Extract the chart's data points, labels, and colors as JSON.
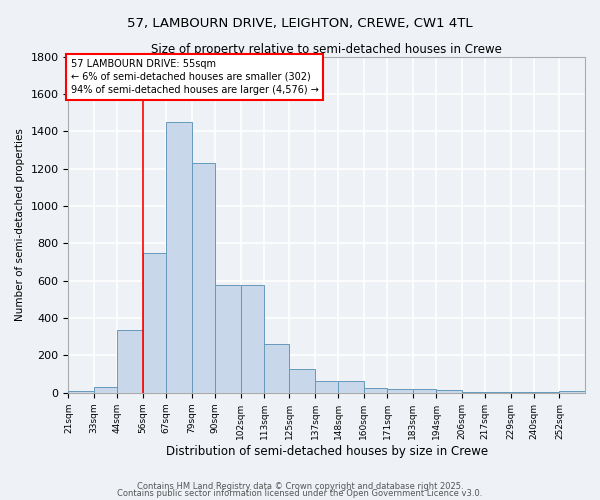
{
  "title1": "57, LAMBOURN DRIVE, LEIGHTON, CREWE, CW1 4TL",
  "title2": "Size of property relative to semi-detached houses in Crewe",
  "xlabel": "Distribution of semi-detached houses by size in Crewe",
  "ylabel": "Number of semi-detached properties",
  "footer1": "Contains HM Land Registry data © Crown copyright and database right 2025.",
  "footer2": "Contains public sector information licensed under the Open Government Licence v3.0.",
  "bins": [
    21,
    33,
    44,
    56,
    67,
    79,
    90,
    102,
    113,
    125,
    137,
    148,
    160,
    171,
    183,
    194,
    206,
    217,
    229,
    240,
    252
  ],
  "bar_heights": [
    12,
    30,
    335,
    750,
    1450,
    1230,
    580,
    580,
    260,
    130,
    62,
    62,
    28,
    22,
    18,
    13,
    5,
    5,
    2,
    2,
    8
  ],
  "bar_color": "#c8d8ea",
  "bar_edge_color": "#6699bb",
  "red_line_x": 56,
  "ylim": [
    0,
    1800
  ],
  "yticks": [
    0,
    200,
    400,
    600,
    800,
    1000,
    1200,
    1400,
    1600,
    1800
  ],
  "annotation_line1": "57 LAMBOURN DRIVE: 55sqm",
  "annotation_line2": "← 6% of semi-detached houses are smaller (302)",
  "annotation_line3": "94% of semi-detached houses are larger (4,576) →",
  "bg_color": "#eef2f7",
  "grid_color": "#ffffff",
  "tick_labels": [
    "21sqm",
    "33sqm",
    "44sqm",
    "56sqm",
    "67sqm",
    "79sqm",
    "90sqm",
    "102sqm",
    "113sqm",
    "125sqm",
    "137sqm",
    "148sqm",
    "160sqm",
    "171sqm",
    "183sqm",
    "194sqm",
    "206sqm",
    "217sqm",
    "229sqm",
    "240sqm",
    "252sqm"
  ]
}
